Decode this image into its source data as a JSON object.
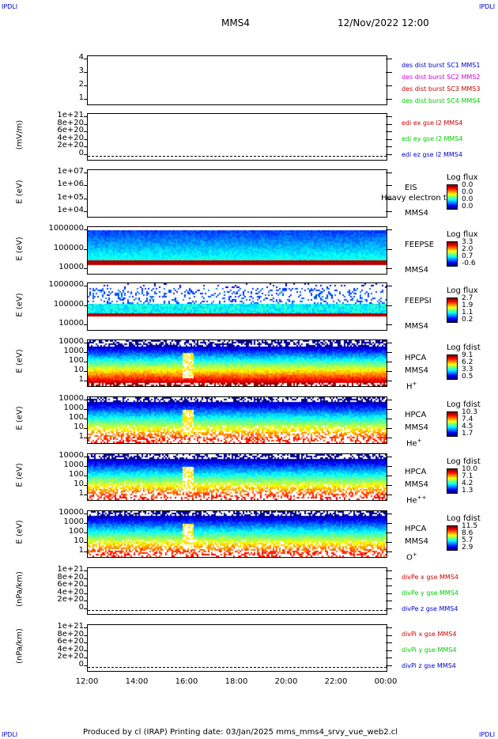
{
  "header": {
    "corner_label": "IPDLI",
    "spacecraft": "MMS4",
    "datetime": "12/Nov/2022 12:00"
  },
  "footer": {
    "text": "Produced by cl (IRAP)   Printing date: 03/Jan/2025   mms_mms4_srvy_vue_web2.cl"
  },
  "colors": {
    "blue": "#0000cc",
    "magenta": "#cc00cc",
    "red": "#cc0000",
    "green": "#00cc00"
  },
  "chart_data": [
    {
      "type": "line",
      "panel": "spacecraft-flags",
      "yticks": [
        "4",
        "3",
        "2",
        "1"
      ],
      "ylabel": "",
      "legend": [
        {
          "text": "des dist burst SC1 MMS1",
          "color": "blue"
        },
        {
          "text": "des dist burst SC2 MMS2",
          "color": "magenta"
        },
        {
          "text": "des dist burst SC3 MMS3",
          "color": "red"
        },
        {
          "text": "des dist burst SC4 MMS4",
          "color": "green"
        }
      ]
    },
    {
      "type": "line",
      "panel": "edi-efield",
      "ylabel": "(mV/m)",
      "yticks": [
        "1e+21",
        "8e+20",
        "6e+20",
        "4e+20",
        "2e+20",
        "0"
      ],
      "legend": [
        {
          "text": "edi ex gse l2 MMS4",
          "color": "red"
        },
        {
          "text": "edi ey gse l2 MMS4",
          "color": "green"
        },
        {
          "text": "edi ez gse l2 MMS4",
          "color": "blue"
        }
      ]
    },
    {
      "type": "heatmap",
      "panel": "eis",
      "ylabel": "E (eV)",
      "yticks": [
        "1e+07",
        "1e+06",
        "1e+05",
        "1e+04"
      ],
      "instrument": [
        "EIS",
        "MMS4"
      ],
      "overlay_text": "Heavy electron to",
      "colorbar": {
        "title": "Log flux",
        "values": [
          "0.0",
          "0.0",
          "0.0",
          "0.0"
        ]
      },
      "empty": true
    },
    {
      "type": "heatmap",
      "panel": "feepse",
      "ylabel": "E (eV)",
      "yticks": [
        "1000000",
        "100000",
        "10000"
      ],
      "instrument": [
        "FEEPSE",
        "MMS4"
      ],
      "colorbar": {
        "title": "Log flux",
        "values": [
          "3.3",
          "2.0",
          "0.7",
          "-0.6"
        ]
      }
    },
    {
      "type": "heatmap",
      "panel": "feepsi",
      "ylabel": "E (eV)",
      "yticks": [
        "1000000",
        "100000",
        "10000"
      ],
      "instrument": [
        "FEEPSI",
        "MMS4"
      ],
      "colorbar": {
        "title": "Log flux",
        "values": [
          "2.7",
          "1.9",
          "1.1",
          "0.2"
        ]
      }
    },
    {
      "type": "heatmap",
      "panel": "hpca-h",
      "ylabel": "E (eV)",
      "yticks": [
        "10000",
        "1000",
        "100",
        "10",
        "1"
      ],
      "instrument": [
        "HPCA",
        "MMS4",
        "H",
        "+"
      ],
      "colorbar": {
        "title": "Log fdist",
        "values": [
          "9.1",
          "6.2",
          "3.3",
          "0.5"
        ]
      }
    },
    {
      "type": "heatmap",
      "panel": "hpca-he",
      "ylabel": "E (eV)",
      "yticks": [
        "10000",
        "1000",
        "100",
        "10",
        "1"
      ],
      "instrument": [
        "HPCA",
        "MMS4",
        "He",
        "+"
      ],
      "colorbar": {
        "title": "Log fdist",
        "values": [
          "10.3",
          "7.4",
          "4.5",
          "1.7"
        ]
      }
    },
    {
      "type": "heatmap",
      "panel": "hpca-hepp",
      "ylabel": "E (eV)",
      "yticks": [
        "10000",
        "1000",
        "100",
        "10",
        "1"
      ],
      "instrument": [
        "HPCA",
        "MMS4",
        "He",
        "++"
      ],
      "colorbar": {
        "title": "Log fdist",
        "values": [
          "10.0",
          "7.1",
          "4.2",
          "1.3"
        ]
      }
    },
    {
      "type": "heatmap",
      "panel": "hpca-o",
      "ylabel": "E (eV)",
      "yticks": [
        "10000",
        "1000",
        "100",
        "10",
        "1"
      ],
      "instrument": [
        "HPCA",
        "MMS4",
        "O",
        "+"
      ],
      "colorbar": {
        "title": "Log fdist",
        "values": [
          "11.5",
          "8.6",
          "5.7",
          "2.9"
        ]
      }
    },
    {
      "type": "line",
      "panel": "divpe",
      "ylabel": "(nPa/km)",
      "yticks": [
        "1e+21",
        "8e+20",
        "6e+20",
        "4e+20",
        "2e+20",
        "0"
      ],
      "legend": [
        {
          "text": "divPe x gse MMS4",
          "color": "red"
        },
        {
          "text": "divPe y gse MMS4",
          "color": "green"
        },
        {
          "text": "divPe z gse MMS4",
          "color": "blue"
        }
      ]
    },
    {
      "type": "line",
      "panel": "divpi",
      "ylabel": "(nPa/km)",
      "yticks": [
        "1e+21",
        "8e+20",
        "6e+20",
        "4e+20",
        "2e+20",
        "0"
      ],
      "legend": [
        {
          "text": "divPi x gse MMS4",
          "color": "red"
        },
        {
          "text": "divPi y gse MMS4",
          "color": "green"
        },
        {
          "text": "divPi z gse MMS4",
          "color": "blue"
        }
      ]
    }
  ],
  "xaxis": {
    "ticks": [
      "12:00",
      "14:00",
      "16:00",
      "18:00",
      "20:00",
      "22:00",
      "00:00"
    ]
  }
}
